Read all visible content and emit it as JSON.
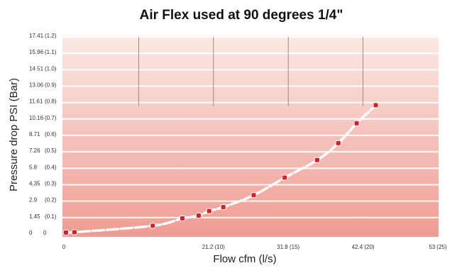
{
  "chart_data": {
    "type": "scatter",
    "title": "Air Flex used at 90 degrees 1/4\"",
    "xlabel": "Flow cfm (l/s)",
    "ylabel": "Pressure drop PSI (Bar)",
    "xlim": [
      0,
      53
    ],
    "ylim": [
      0,
      17.41
    ],
    "x_ticks": [
      {
        "value": 0,
        "label": "0"
      },
      {
        "value": 21.2,
        "label": "21.2 (10)"
      },
      {
        "value": 31.8,
        "label": "31.8 (15)"
      },
      {
        "value": 42.4,
        "label": "42.4 (20)"
      },
      {
        "value": 53,
        "label": "53 (25)"
      }
    ],
    "y_ticks": [
      {
        "value": 0,
        "label": "0",
        "label2": "0"
      },
      {
        "value": 1.45,
        "label": "1.45",
        "label2": "(0.1)"
      },
      {
        "value": 2.9,
        "label": "2.9",
        "label2": "(0.2)"
      },
      {
        "value": 4.35,
        "label": "4.35",
        "label2": "(0.3)"
      },
      {
        "value": 5.8,
        "label": "5.8",
        "label2": "(0.4)"
      },
      {
        "value": 7.26,
        "label": "7.26",
        "label2": "(0.5)"
      },
      {
        "value": 8.71,
        "label": "8.71",
        "label2": "(0.6)"
      },
      {
        "value": 10.16,
        "label": "10.16",
        "label2": "(0.7)"
      },
      {
        "value": 11.61,
        "label": "11.61",
        "label2": "(0.8)"
      },
      {
        "value": 13.06,
        "label": "13.06",
        "label2": "(0.9)"
      },
      {
        "value": 14.51,
        "label": "14.51",
        "label2": "(1.0)"
      },
      {
        "value": 15.96,
        "label": "15.96",
        "label2": "(1.1)"
      },
      {
        "value": 17.41,
        "label": "17.41",
        "label2": "(1.2)"
      }
    ],
    "vertical_gridlines": [
      10.6,
      21.2,
      31.8,
      42.4
    ],
    "series": [
      {
        "color": "#d81f26",
        "points": [
          {
            "x": 0.3,
            "y": 0.0
          },
          {
            "x": 1.5,
            "y": 0.03
          },
          {
            "x": 12.6,
            "y": 0.6
          },
          {
            "x": 16.8,
            "y": 1.25
          },
          {
            "x": 19.1,
            "y": 1.5
          },
          {
            "x": 20.6,
            "y": 1.9
          },
          {
            "x": 22.6,
            "y": 2.25
          },
          {
            "x": 26.9,
            "y": 3.3
          },
          {
            "x": 31.3,
            "y": 4.85
          },
          {
            "x": 35.9,
            "y": 6.4
          },
          {
            "x": 38.9,
            "y": 7.9
          },
          {
            "x": 41.5,
            "y": 9.65
          },
          {
            "x": 44.2,
            "y": 11.25
          }
        ]
      }
    ],
    "trendline": "curve",
    "grid": "horizontal-bands",
    "colors": {
      "band_top": "#fbe9e4",
      "band_bottom": "#ee9c93",
      "marker": "#d81f26",
      "curve": "#ffffff"
    }
  }
}
